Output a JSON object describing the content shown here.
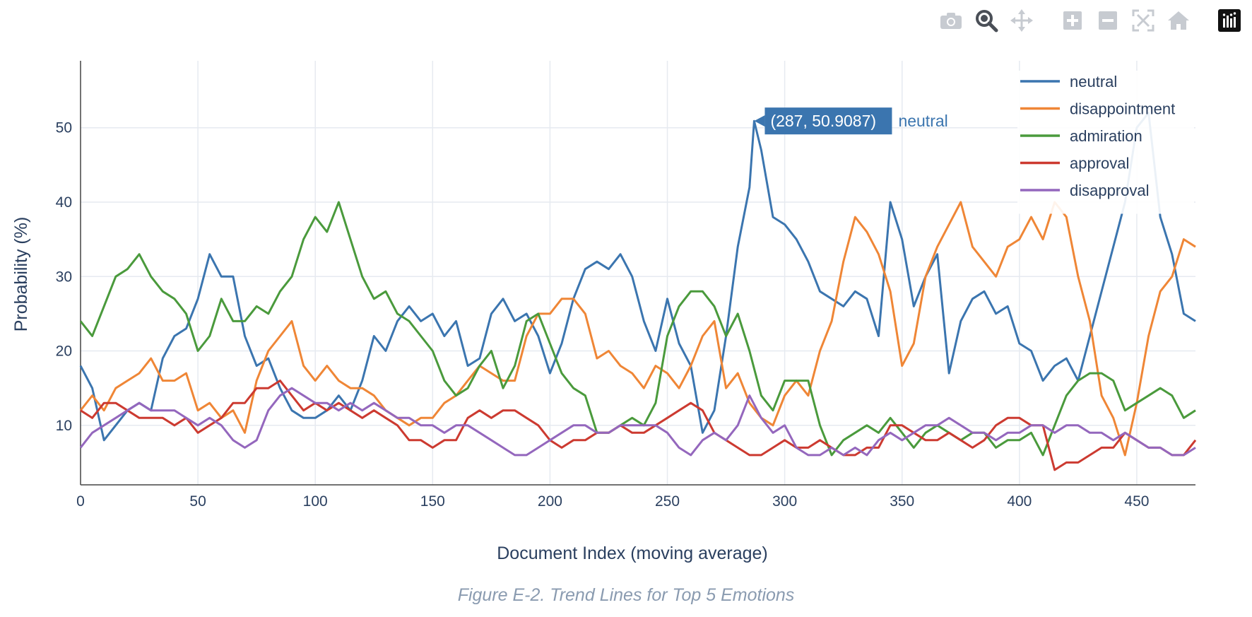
{
  "modebar": {
    "buttons": [
      {
        "name": "camera-icon",
        "active": false
      },
      {
        "name": "zoom-icon",
        "active": true
      },
      {
        "name": "pan-icon",
        "active": false
      },
      {
        "name": "zoom-in-icon",
        "active": false
      },
      {
        "name": "zoom-out-icon",
        "active": false
      },
      {
        "name": "autoscale-icon",
        "active": false
      },
      {
        "name": "reset-axes-icon",
        "active": false
      },
      {
        "name": "plotly-logo-icon",
        "active": false
      }
    ]
  },
  "caption": "Figure E-2. Trend Lines for Top 5 Emotions",
  "tooltip": {
    "text": "(287, 50.9087)",
    "series": "neutral"
  },
  "chart_data": {
    "type": "line",
    "title": "",
    "xlabel": "Document Index (moving average)",
    "ylabel": "Probability (%)",
    "xlim": [
      0,
      475
    ],
    "ylim": [
      2,
      59
    ],
    "xticks": [
      0,
      50,
      100,
      150,
      200,
      250,
      300,
      350,
      400,
      450
    ],
    "yticks": [
      10,
      20,
      30,
      40,
      50
    ],
    "grid": true,
    "legend_position": "top-right",
    "series": [
      {
        "name": "neutral",
        "color": "#3b75af",
        "x": [
          0,
          5,
          10,
          15,
          20,
          25,
          30,
          35,
          40,
          45,
          50,
          55,
          60,
          65,
          70,
          75,
          80,
          85,
          90,
          95,
          100,
          105,
          110,
          115,
          120,
          125,
          130,
          135,
          140,
          145,
          150,
          155,
          160,
          165,
          170,
          175,
          180,
          185,
          190,
          195,
          200,
          205,
          210,
          215,
          220,
          225,
          230,
          235,
          240,
          245,
          250,
          255,
          260,
          265,
          270,
          275,
          280,
          285,
          287,
          290,
          295,
          300,
          305,
          310,
          315,
          320,
          325,
          330,
          335,
          340,
          345,
          350,
          355,
          360,
          365,
          370,
          375,
          380,
          385,
          390,
          395,
          400,
          405,
          410,
          415,
          420,
          425,
          430,
          435,
          440,
          445,
          450,
          455,
          460,
          465,
          470,
          475
        ],
        "y": [
          18,
          15,
          8,
          10,
          12,
          13,
          12,
          19,
          22,
          23,
          27,
          33,
          30,
          30,
          22,
          18,
          19,
          15,
          12,
          11,
          11,
          12,
          14,
          12,
          16,
          22,
          20,
          24,
          26,
          24,
          25,
          22,
          24,
          18,
          19,
          25,
          27,
          24,
          25,
          22,
          17,
          21,
          27,
          31,
          32,
          31,
          33,
          30,
          24,
          20,
          27,
          21,
          18,
          9,
          12,
          22,
          34,
          42,
          50.9,
          47,
          38,
          37,
          35,
          32,
          28,
          27,
          26,
          28,
          27,
          22,
          40,
          35,
          26,
          30,
          33,
          17,
          24,
          27,
          28,
          25,
          26,
          21,
          20,
          16,
          18,
          19,
          16,
          22,
          28,
          34,
          40,
          50,
          52,
          38,
          33,
          25,
          24
        ]
      },
      {
        "name": "disappointment",
        "color": "#ef8636",
        "x": [
          0,
          5,
          10,
          15,
          20,
          25,
          30,
          35,
          40,
          45,
          50,
          55,
          60,
          65,
          70,
          75,
          80,
          85,
          90,
          95,
          100,
          105,
          110,
          115,
          120,
          125,
          130,
          135,
          140,
          145,
          150,
          155,
          160,
          165,
          170,
          175,
          180,
          185,
          190,
          195,
          200,
          205,
          210,
          215,
          220,
          225,
          230,
          235,
          240,
          245,
          250,
          255,
          260,
          265,
          270,
          275,
          280,
          285,
          290,
          295,
          300,
          305,
          310,
          315,
          320,
          325,
          330,
          335,
          340,
          345,
          350,
          355,
          360,
          365,
          370,
          375,
          380,
          385,
          390,
          395,
          400,
          405,
          410,
          415,
          420,
          425,
          430,
          435,
          440,
          445,
          450,
          455,
          460,
          465,
          470,
          475
        ],
        "y": [
          12,
          14,
          12,
          15,
          16,
          17,
          19,
          16,
          16,
          17,
          12,
          13,
          11,
          12,
          9,
          16,
          20,
          22,
          24,
          18,
          16,
          18,
          16,
          15,
          15,
          14,
          12,
          11,
          10,
          11,
          11,
          13,
          14,
          16,
          18,
          17,
          16,
          16,
          22,
          25,
          25,
          27,
          27,
          25,
          19,
          20,
          18,
          17,
          15,
          18,
          17,
          15,
          18,
          22,
          24,
          15,
          17,
          13,
          11,
          10,
          14,
          16,
          14,
          20,
          24,
          32,
          38,
          36,
          33,
          28,
          18,
          21,
          30,
          34,
          37,
          40,
          34,
          32,
          30,
          34,
          35,
          38,
          35,
          40,
          38,
          30,
          24,
          14,
          11,
          6,
          13,
          22,
          28,
          30,
          35,
          34
        ]
      },
      {
        "name": "admiration",
        "color": "#4a9a3c",
        "x": [
          0,
          5,
          10,
          15,
          20,
          25,
          30,
          35,
          40,
          45,
          50,
          55,
          60,
          65,
          70,
          75,
          80,
          85,
          90,
          95,
          100,
          105,
          110,
          115,
          120,
          125,
          130,
          135,
          140,
          145,
          150,
          155,
          160,
          165,
          170,
          175,
          180,
          185,
          190,
          195,
          200,
          205,
          210,
          215,
          220,
          225,
          230,
          235,
          240,
          245,
          250,
          255,
          260,
          265,
          270,
          275,
          280,
          285,
          290,
          295,
          300,
          305,
          310,
          315,
          320,
          325,
          330,
          335,
          340,
          345,
          350,
          355,
          360,
          365,
          370,
          375,
          380,
          385,
          390,
          395,
          400,
          405,
          410,
          415,
          420,
          425,
          430,
          435,
          440,
          445,
          450,
          455,
          460,
          465,
          470,
          475
        ],
        "y": [
          24,
          22,
          26,
          30,
          31,
          33,
          30,
          28,
          27,
          25,
          20,
          22,
          27,
          24,
          24,
          26,
          25,
          28,
          30,
          35,
          38,
          36,
          40,
          35,
          30,
          27,
          28,
          25,
          24,
          22,
          20,
          16,
          14,
          15,
          18,
          20,
          15,
          18,
          24,
          25,
          21,
          17,
          15,
          14,
          9,
          9,
          10,
          11,
          10,
          13,
          22,
          26,
          28,
          28,
          26,
          22,
          25,
          20,
          14,
          12,
          16,
          16,
          16,
          10,
          6,
          8,
          9,
          10,
          9,
          11,
          9,
          7,
          9,
          10,
          9,
          8,
          9,
          9,
          7,
          8,
          8,
          9,
          6,
          10,
          14,
          16,
          17,
          17,
          16,
          12,
          13,
          14,
          15,
          14,
          11,
          12
        ]
      },
      {
        "name": "approval",
        "color": "#cc3a30",
        "x": [
          0,
          5,
          10,
          15,
          20,
          25,
          30,
          35,
          40,
          45,
          50,
          55,
          60,
          65,
          70,
          75,
          80,
          85,
          90,
          95,
          100,
          105,
          110,
          115,
          120,
          125,
          130,
          135,
          140,
          145,
          150,
          155,
          160,
          165,
          170,
          175,
          180,
          185,
          190,
          195,
          200,
          205,
          210,
          215,
          220,
          225,
          230,
          235,
          240,
          245,
          250,
          255,
          260,
          265,
          270,
          275,
          280,
          285,
          290,
          295,
          300,
          305,
          310,
          315,
          320,
          325,
          330,
          335,
          340,
          345,
          350,
          355,
          360,
          365,
          370,
          375,
          380,
          385,
          390,
          395,
          400,
          405,
          410,
          415,
          420,
          425,
          430,
          435,
          440,
          445,
          450,
          455,
          460,
          465,
          470,
          475
        ],
        "y": [
          12,
          11,
          13,
          13,
          12,
          11,
          11,
          11,
          10,
          11,
          9,
          10,
          11,
          13,
          13,
          15,
          15,
          16,
          14,
          12,
          13,
          12,
          13,
          12,
          11,
          12,
          11,
          10,
          8,
          8,
          7,
          8,
          8,
          11,
          12,
          11,
          12,
          12,
          11,
          10,
          8,
          7,
          8,
          8,
          9,
          9,
          10,
          9,
          9,
          10,
          11,
          12,
          13,
          12,
          9,
          8,
          7,
          6,
          6,
          7,
          8,
          7,
          7,
          8,
          7,
          6,
          6,
          7,
          7,
          10,
          10,
          9,
          8,
          8,
          9,
          8,
          7,
          8,
          10,
          11,
          11,
          10,
          10,
          4,
          5,
          5,
          6,
          7,
          7,
          9,
          8,
          7,
          7,
          6,
          6,
          8
        ]
      },
      {
        "name": "disapproval",
        "color": "#9467bd",
        "x": [
          0,
          5,
          10,
          15,
          20,
          25,
          30,
          35,
          40,
          45,
          50,
          55,
          60,
          65,
          70,
          75,
          80,
          85,
          90,
          95,
          100,
          105,
          110,
          115,
          120,
          125,
          130,
          135,
          140,
          145,
          150,
          155,
          160,
          165,
          170,
          175,
          180,
          185,
          190,
          195,
          200,
          205,
          210,
          215,
          220,
          225,
          230,
          235,
          240,
          245,
          250,
          255,
          260,
          265,
          270,
          275,
          280,
          285,
          290,
          295,
          300,
          305,
          310,
          315,
          320,
          325,
          330,
          335,
          340,
          345,
          350,
          355,
          360,
          365,
          370,
          375,
          380,
          385,
          390,
          395,
          400,
          405,
          410,
          415,
          420,
          425,
          430,
          435,
          440,
          445,
          450,
          455,
          460,
          465,
          470,
          475
        ],
        "y": [
          7,
          9,
          10,
          11,
          12,
          13,
          12,
          12,
          12,
          11,
          10,
          11,
          10,
          8,
          7,
          8,
          12,
          14,
          15,
          14,
          13,
          13,
          12,
          13,
          12,
          13,
          12,
          11,
          11,
          10,
          10,
          9,
          10,
          10,
          9,
          8,
          7,
          6,
          6,
          7,
          8,
          9,
          10,
          10,
          9,
          9,
          10,
          10,
          10,
          10,
          9,
          7,
          6,
          8,
          9,
          8,
          10,
          14,
          11,
          9,
          10,
          7,
          6,
          6,
          7,
          6,
          7,
          6,
          8,
          9,
          8,
          9,
          10,
          10,
          11,
          10,
          9,
          9,
          8,
          9,
          9,
          10,
          10,
          9,
          10,
          10,
          9,
          9,
          8,
          9,
          8,
          7,
          7,
          6,
          6,
          7
        ]
      }
    ]
  }
}
